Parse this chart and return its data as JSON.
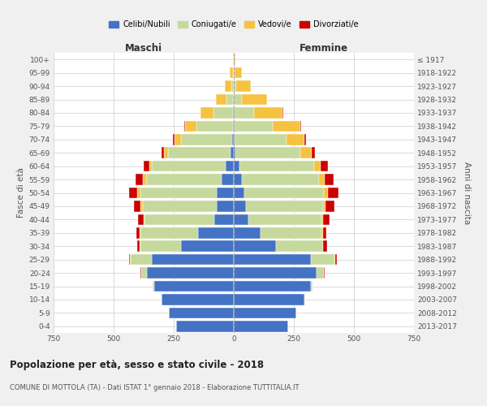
{
  "age_groups": [
    "0-4",
    "5-9",
    "10-14",
    "15-19",
    "20-24",
    "25-29",
    "30-34",
    "35-39",
    "40-44",
    "45-49",
    "50-54",
    "55-59",
    "60-64",
    "65-69",
    "70-74",
    "75-79",
    "80-84",
    "85-89",
    "90-94",
    "95-99",
    "100+"
  ],
  "birth_years": [
    "2013-2017",
    "2008-2012",
    "2003-2007",
    "1998-2002",
    "1993-1997",
    "1988-1992",
    "1983-1987",
    "1978-1982",
    "1973-1977",
    "1968-1972",
    "1963-1967",
    "1958-1962",
    "1953-1957",
    "1948-1952",
    "1943-1947",
    "1938-1942",
    "1933-1937",
    "1928-1932",
    "1923-1927",
    "1918-1922",
    "≤ 1917"
  ],
  "males": {
    "celibi": [
      240,
      270,
      300,
      330,
      360,
      340,
      220,
      150,
      80,
      70,
      70,
      50,
      35,
      12,
      8,
      4,
      3,
      2,
      1,
      1,
      0
    ],
    "coniugati": [
      0,
      0,
      2,
      8,
      25,
      90,
      170,
      240,
      290,
      310,
      320,
      315,
      305,
      260,
      210,
      150,
      80,
      28,
      10,
      4,
      1
    ],
    "vedovi": [
      0,
      0,
      0,
      0,
      0,
      1,
      2,
      3,
      5,
      8,
      12,
      12,
      12,
      18,
      30,
      50,
      55,
      45,
      25,
      12,
      3
    ],
    "divorziati": [
      0,
      0,
      0,
      0,
      2,
      5,
      10,
      12,
      22,
      28,
      35,
      32,
      22,
      12,
      6,
      3,
      2,
      1,
      0,
      0,
      0
    ]
  },
  "females": {
    "nubili": [
      225,
      260,
      295,
      320,
      345,
      320,
      175,
      110,
      60,
      50,
      45,
      35,
      25,
      8,
      4,
      3,
      2,
      1,
      1,
      1,
      0
    ],
    "coniugate": [
      0,
      0,
      2,
      8,
      30,
      100,
      195,
      255,
      305,
      320,
      330,
      320,
      310,
      270,
      215,
      160,
      82,
      32,
      10,
      4,
      1
    ],
    "vedove": [
      0,
      0,
      0,
      0,
      0,
      2,
      3,
      5,
      6,
      12,
      18,
      22,
      28,
      48,
      75,
      115,
      120,
      105,
      60,
      28,
      6
    ],
    "divorziate": [
      0,
      0,
      0,
      0,
      2,
      8,
      14,
      14,
      28,
      38,
      42,
      38,
      30,
      12,
      6,
      3,
      2,
      1,
      0,
      0,
      0
    ]
  },
  "colors": {
    "celibi": "#4472c4",
    "coniugati": "#c5d99c",
    "vedovi": "#f5c242",
    "divorziati": "#cc0000"
  },
  "legend_labels": [
    "Celibi/Nubili",
    "Coniugati/e",
    "Vedovi/e",
    "Divorziati/e"
  ],
  "title": "Popolazione per età, sesso e stato civile - 2018",
  "subtitle": "COMUNE DI MOTTOLA (TA) - Dati ISTAT 1° gennaio 2018 - Elaborazione TUTTITALIA.IT",
  "xlabel_left": "Maschi",
  "xlabel_right": "Femmine",
  "ylabel_left": "Fasce di età",
  "ylabel_right": "Anni di nascita",
  "xlim": 750,
  "bg_color": "#f0f0f0",
  "plot_bg_color": "#ffffff"
}
